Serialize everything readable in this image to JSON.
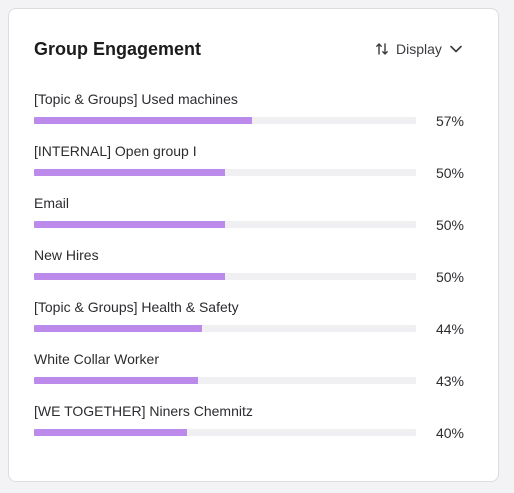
{
  "card": {
    "title": "Group Engagement",
    "display_label": "Display",
    "icons": {
      "sort": "sort-arrows-icon",
      "dropdown": "chevron-down-icon"
    }
  },
  "colors": {
    "bar_fill": "#bb8aeb",
    "bar_track": "#f0f0f3"
  },
  "groups": [
    {
      "name": "[Topic & Groups] Used machines",
      "percent_label": "57%",
      "value": 57
    },
    {
      "name": "[INTERNAL] Open group I",
      "percent_label": "50%",
      "value": 50
    },
    {
      "name": "Email",
      "percent_label": "50%",
      "value": 50
    },
    {
      "name": "New Hires",
      "percent_label": "50%",
      "value": 50
    },
    {
      "name": "[Topic & Groups] Health & Safety",
      "percent_label": "44%",
      "value": 44
    },
    {
      "name": "White Collar Worker",
      "percent_label": "43%",
      "value": 43
    },
    {
      "name": "[WE TOGETHER] Niners Chemnitz",
      "percent_label": "40%",
      "value": 40
    }
  ]
}
